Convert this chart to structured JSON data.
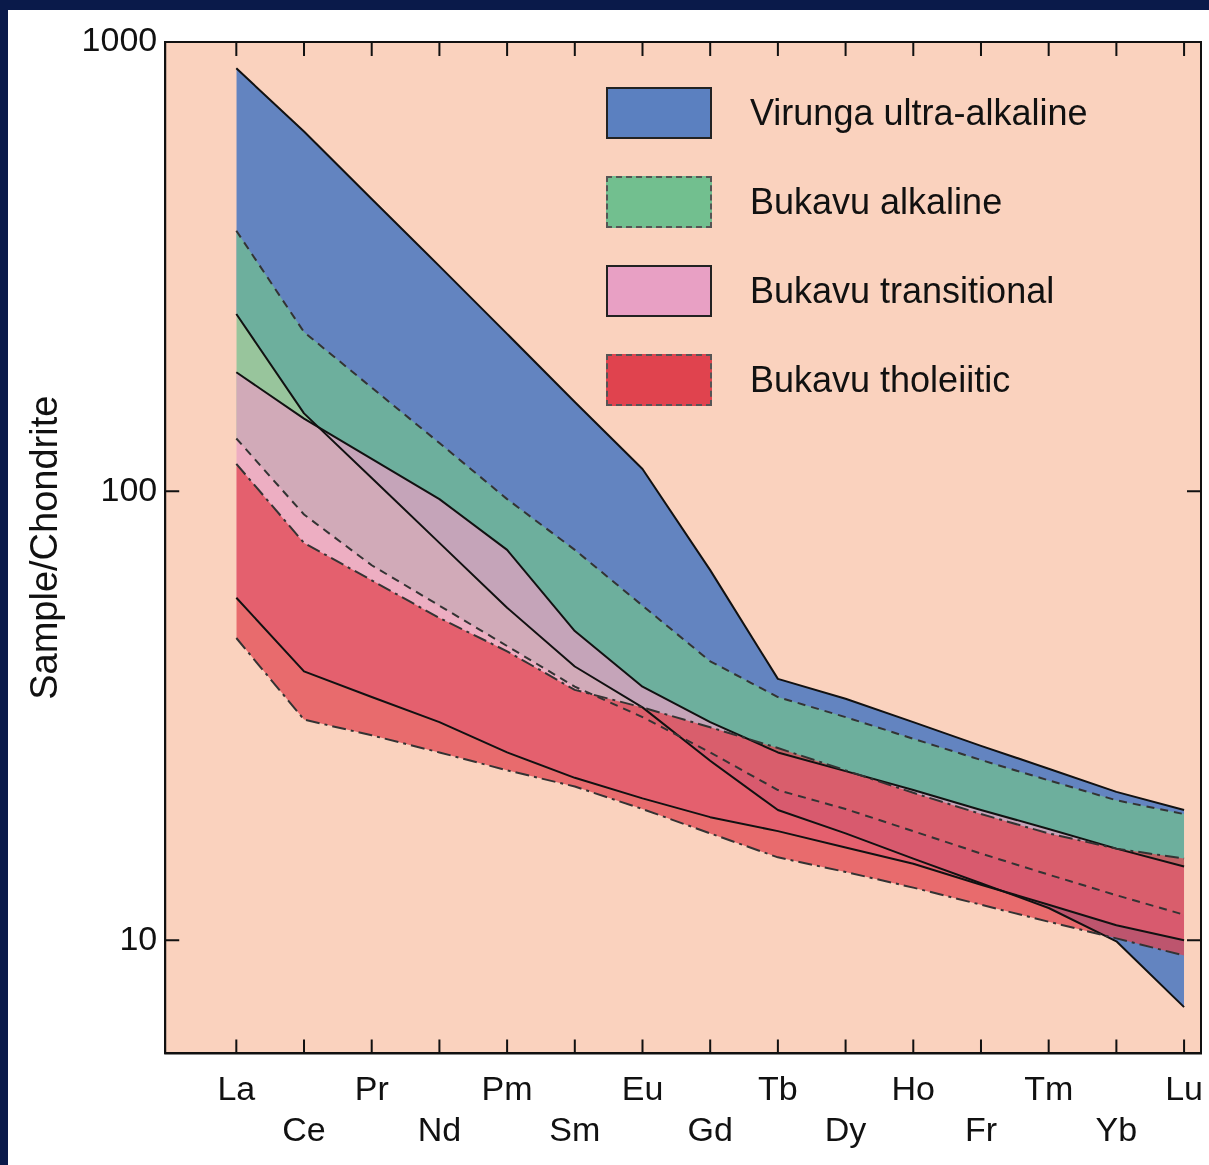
{
  "chart_data": {
    "type": "area",
    "ylabel": "Sample/Chondrite",
    "log": "y",
    "ylim": [
      5.6,
      1000
    ],
    "yticks": [
      10,
      100,
      1000
    ],
    "legend": "top right",
    "categories": [
      "La",
      "Ce",
      "Pr",
      "Nd",
      "Pm",
      "Sm",
      "Eu",
      "Gd",
      "Tb",
      "Dy",
      "Ho",
      "Fr",
      "Tm",
      "Yb",
      "Lu"
    ],
    "series": [
      {
        "type": "line",
        "color": "#111111",
        "line_style": "solid",
        "values": [
          248,
          149,
          107,
          76.7,
          55,
          40.7,
          33,
          25.1,
          19.5,
          17.3,
          15.2,
          13.4,
          11.8,
          9.95,
          7.1
        ]
      },
      {
        "name": "Virunga ultra-alkaline",
        "color": "#5b80c0",
        "line_style": "solid",
        "values": [
          874,
          632,
          447,
          317,
          224,
          158,
          112,
          66.7,
          38.2,
          34.5,
          30.6,
          27.1,
          24.1,
          21.4,
          19.5
        ]
      },
      {
        "type": "line",
        "color": "#333333",
        "line_style": "dashed",
        "values": [
          131,
          88.7,
          68.4,
          55.6,
          45.2,
          36.7,
          31.4,
          26.2,
          21.6,
          19.6,
          17.5,
          15.6,
          14,
          12.6,
          11.4
        ]
      },
      {
        "name": "Bukavu alkaline",
        "color": "#72bf8f",
        "line_style": "dashed",
        "values": [
          380,
          226,
          170,
          128,
          96,
          74,
          55.6,
          41.8,
          34.8,
          31.4,
          28.1,
          25.2,
          22.7,
          20.5,
          19.1
        ]
      },
      {
        "type": "line",
        "color": "#111111",
        "line_style": "solid",
        "values": [
          57.9,
          39.7,
          34.8,
          30.6,
          26.2,
          23,
          20.7,
          18.8,
          17.5,
          16.1,
          14.8,
          13.3,
          12,
          10.8,
          10
        ]
      },
      {
        "name": "Bukavu transitional",
        "color": "#e8a0c4",
        "line_style": "solid",
        "values": [
          184,
          145,
          118,
          96,
          74,
          48.8,
          36.7,
          30.6,
          26.2,
          23.8,
          21.6,
          19.5,
          17.7,
          16,
          14.6
        ]
      },
      {
        "type": "line",
        "color": "#333333",
        "line_style": "dashdot",
        "values": [
          47.1,
          31,
          28.6,
          26.2,
          23.9,
          22,
          19.6,
          17.3,
          15.3,
          14.2,
          13.1,
          12,
          11,
          10.1,
          9.25
        ]
      },
      {
        "name": "Bukavu tholeiitic",
        "color": "#e0434e",
        "line_style": "dashdot",
        "values": [
          115,
          76.7,
          63.3,
          52.2,
          44,
          36.1,
          33,
          29.8,
          26.8,
          23.9,
          21.3,
          19.1,
          17.3,
          16,
          15.2
        ]
      }
    ]
  }
}
